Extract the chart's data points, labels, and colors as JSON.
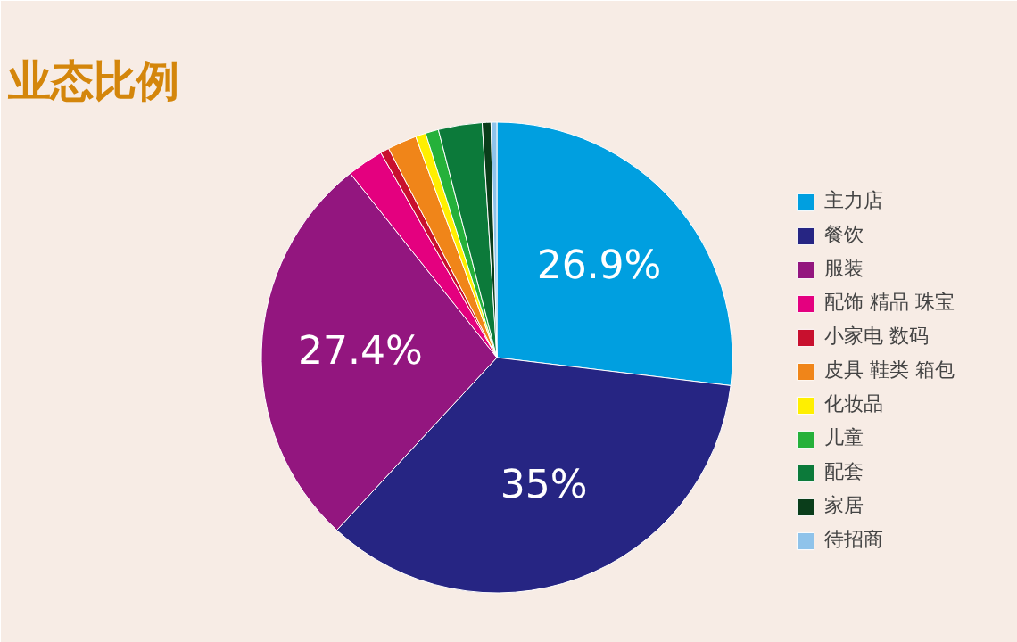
{
  "chart_data": {
    "type": "pie",
    "title": "业态比例",
    "categories": [
      "主力店",
      "餐饮",
      "服装",
      "配饰 精品 珠宝",
      "小家电 数码",
      "皮具 鞋类 箱包",
      "化妆品",
      "儿童",
      "配套",
      "家居",
      "待招商"
    ],
    "values": [
      26.9,
      35,
      27.4,
      2.5,
      0.6,
      2.0,
      0.7,
      0.9,
      3.0,
      0.6,
      0.4
    ],
    "value_labels": [
      "26.9%",
      "35%",
      "27.4%",
      null,
      null,
      null,
      null,
      null,
      null,
      null,
      null
    ],
    "colors": [
      "#009fe0",
      "#262583",
      "#93167f",
      "#e4007f",
      "#c8102e",
      "#f08519",
      "#ffef00",
      "#25b13a",
      "#0c7a3a",
      "#0a3d1a",
      "#8fc3ea"
    ],
    "legend": "right"
  }
}
